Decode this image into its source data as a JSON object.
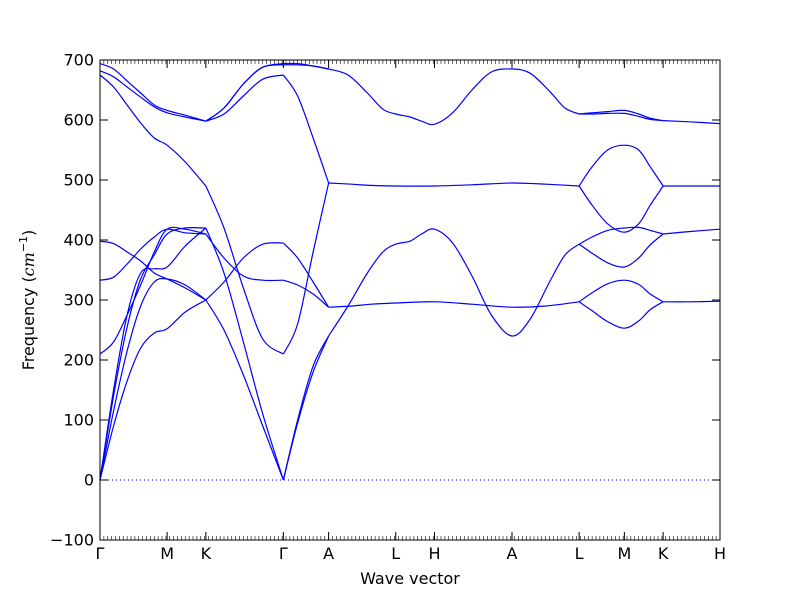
{
  "chart_data": {
    "type": "line",
    "title": "",
    "xlabel": "Wave vector",
    "ylabel_text": "Frequency (",
    "ylabel_unit": "cm",
    "ylabel_exp": "−1",
    "ylabel_close": ")",
    "ylim": [
      -100,
      700
    ],
    "xlim": [
      0,
      16
    ],
    "y_ticks": [
      -100,
      0,
      100,
      200,
      300,
      400,
      500,
      600,
      700
    ],
    "x_ticks": [
      {
        "label": "Γ",
        "x": 0
      },
      {
        "label": "M",
        "x": 1.732
      },
      {
        "label": "K",
        "x": 2.732
      },
      {
        "label": "Γ",
        "x": 4.732
      },
      {
        "label": "A",
        "x": 5.9
      },
      {
        "label": "L",
        "x": 7.632
      },
      {
        "label": "H",
        "x": 8.632
      },
      {
        "label": "A",
        "x": 10.632
      },
      {
        "label": "L",
        "x": 12.364
      },
      {
        "label": "M",
        "x": 13.532
      },
      {
        "label": "K",
        "x": 14.532
      },
      {
        "label": "H",
        "x": 16
      }
    ],
    "zero_line": {
      "y": 0,
      "style": "dotted",
      "color": "#0000ff"
    },
    "line_color": "#0000ff",
    "series": [
      {
        "x": [
          0,
          0.35,
          0.7,
          1.05,
          1.4,
          1.732,
          2.2,
          2.732
        ],
        "y": [
          0,
          90,
          165,
          220,
          245,
          252,
          280,
          300
        ]
      },
      {
        "x": [
          0,
          0.35,
          0.7,
          1.05,
          1.4,
          1.732,
          2.2,
          2.732
        ],
        "y": [
          0,
          115,
          215,
          290,
          330,
          335,
          325,
          300
        ]
      },
      {
        "x": [
          0,
          0.35,
          0.7,
          1.05,
          1.4,
          1.732,
          2.2,
          2.732
        ],
        "y": [
          0,
          140,
          255,
          335,
          375,
          410,
          420,
          420
        ]
      },
      {
        "x": [
          0,
          0.35,
          0.7,
          1.05,
          1.4,
          1.732,
          2.2,
          2.732
        ],
        "y": [
          0,
          150,
          275,
          345,
          352,
          355,
          390,
          420
        ]
      },
      {
        "x": [
          0,
          0.35,
          0.7,
          1.05,
          1.4,
          1.732,
          2.2,
          2.732
        ],
        "y": [
          210,
          230,
          275,
          325,
          380,
          418,
          418,
          410
        ]
      },
      {
        "x": [
          0,
          0.35,
          0.7,
          1.05,
          1.4,
          1.732,
          2.2,
          2.732
        ],
        "y": [
          333,
          338,
          360,
          385,
          405,
          418,
          412,
          410
        ]
      },
      {
        "x": [
          0,
          0.35,
          0.7,
          1.05,
          1.4,
          1.732,
          2.2,
          2.732
        ],
        "y": [
          398,
          394,
          380,
          365,
          345,
          335,
          320,
          300
        ]
      },
      {
        "x": [
          0,
          0.35,
          0.7,
          1.05,
          1.4,
          1.732,
          2.2,
          2.732
        ],
        "y": [
          675,
          655,
          625,
          595,
          570,
          558,
          530,
          490
        ]
      },
      {
        "x": [
          0,
          0.35,
          0.7,
          1.05,
          1.4,
          1.732,
          2.2,
          2.732
        ],
        "y": [
          682,
          672,
          655,
          638,
          622,
          612,
          605,
          598
        ]
      },
      {
        "x": [
          0,
          0.35,
          0.7,
          1.05,
          1.4,
          1.732,
          2.2,
          2.732
        ],
        "y": [
          694,
          685,
          665,
          645,
          625,
          616,
          608,
          598
        ]
      },
      {
        "x": [
          2.732,
          3.2,
          3.7,
          4.2,
          4.732
        ],
        "y": [
          300,
          250,
          175,
          90,
          0
        ]
      },
      {
        "x": [
          2.732,
          3.2,
          3.7,
          4.2,
          4.732
        ],
        "y": [
          420,
          345,
          230,
          110,
          0
        ]
      },
      {
        "x": [
          2.732,
          3.2,
          3.7,
          4.2,
          4.732
        ],
        "y": [
          410,
          370,
          340,
          333,
          333
        ]
      },
      {
        "x": [
          2.732,
          3.2,
          3.7,
          4.2,
          4.732
        ],
        "y": [
          300,
          330,
          370,
          393,
          395
        ]
      },
      {
        "x": [
          2.732,
          3.2,
          3.7,
          4.2,
          4.732
        ],
        "y": [
          490,
          420,
          320,
          235,
          210
        ]
      },
      {
        "x": [
          2.732,
          3.2,
          3.7,
          4.2,
          4.732
        ],
        "y": [
          598,
          610,
          640,
          668,
          675
        ]
      },
      {
        "x": [
          2.732,
          3.2,
          3.7,
          4.2,
          4.732
        ],
        "y": [
          598,
          620,
          660,
          688,
          692
        ]
      },
      {
        "x": [
          2.732,
          3.2,
          3.7,
          4.2,
          4.732
        ],
        "y": [
          598,
          620,
          660,
          688,
          694
        ]
      },
      {
        "x": [
          4.732,
          5.1,
          5.5,
          5.9
        ],
        "y": [
          0,
          95,
          180,
          240
        ]
      },
      {
        "x": [
          4.732,
          5.1,
          5.5,
          5.9
        ],
        "y": [
          0,
          100,
          190,
          240
        ]
      },
      {
        "x": [
          4.732,
          5.1,
          5.5,
          5.9
        ],
        "y": [
          333,
          325,
          310,
          288
        ]
      },
      {
        "x": [
          4.732,
          5.1,
          5.5,
          5.9
        ],
        "y": [
          395,
          370,
          330,
          288
        ]
      },
      {
        "x": [
          4.732,
          5.1,
          5.5,
          5.9
        ],
        "y": [
          210,
          260,
          380,
          495
        ]
      },
      {
        "x": [
          4.732,
          5.1,
          5.5,
          5.9
        ],
        "y": [
          675,
          640,
          570,
          495
        ]
      },
      {
        "x": [
          4.732,
          5.1,
          5.5,
          5.9
        ],
        "y": [
          692,
          692,
          690,
          685
        ]
      },
      {
        "x": [
          4.732,
          5.1,
          5.5,
          5.9
        ],
        "y": [
          694,
          694,
          690,
          685
        ]
      },
      {
        "x": [
          5.9,
          6.4,
          6.9,
          7.3,
          7.632,
          8.0,
          8.3,
          8.632,
          9.1,
          9.6,
          10.1,
          10.632,
          11.1,
          11.6,
          12.0,
          12.364
        ],
        "y": [
          240,
          290,
          345,
          380,
          393,
          398,
          410,
          418,
          395,
          340,
          275,
          240,
          268,
          330,
          375,
          393
        ]
      },
      {
        "x": [
          5.9,
          6.5,
          7.0,
          7.632,
          8.632,
          9.6,
          10.632,
          11.5,
          12.364
        ],
        "y": [
          288,
          290,
          293,
          295,
          297,
          293,
          288,
          290,
          297
        ]
      },
      {
        "x": [
          5.9,
          6.5,
          7.0,
          7.632,
          8.632,
          9.6,
          10.632,
          11.5,
          12.364
        ],
        "y": [
          495,
          493,
          491,
          490,
          490,
          492,
          495,
          493,
          490
        ]
      },
      {
        "x": [
          5.9,
          6.4,
          6.9,
          7.3,
          7.632,
          8.0,
          8.3,
          8.632,
          9.1,
          9.6,
          10.1,
          10.632,
          11.1,
          11.6,
          12.0,
          12.364
        ],
        "y": [
          685,
          675,
          645,
          618,
          610,
          605,
          598,
          593,
          612,
          650,
          680,
          685,
          678,
          648,
          620,
          610
        ]
      },
      {
        "x": [
          12.364,
          12.7,
          13.1,
          13.532,
          13.9,
          14.2,
          14.532
        ],
        "y": [
          297,
          282,
          264,
          253,
          265,
          284,
          297
        ]
      },
      {
        "x": [
          12.364,
          12.7,
          13.1,
          13.532,
          13.9,
          14.2,
          14.532
        ],
        "y": [
          297,
          312,
          327,
          333,
          326,
          310,
          297
        ]
      },
      {
        "x": [
          12.364,
          12.7,
          13.1,
          13.532,
          13.9,
          14.2,
          14.532
        ],
        "y": [
          393,
          378,
          362,
          355,
          370,
          392,
          410
        ]
      },
      {
        "x": [
          12.364,
          12.7,
          13.1,
          13.532,
          13.9,
          14.2,
          14.532
        ],
        "y": [
          393,
          405,
          416,
          420,
          421,
          416,
          410
        ]
      },
      {
        "x": [
          12.364,
          12.7,
          13.1,
          13.532,
          13.9,
          14.2,
          14.532
        ],
        "y": [
          490,
          458,
          427,
          413,
          427,
          458,
          490
        ]
      },
      {
        "x": [
          12.364,
          12.7,
          13.1,
          13.532,
          13.9,
          14.2,
          14.532
        ],
        "y": [
          490,
          522,
          550,
          558,
          550,
          522,
          490
        ]
      },
      {
        "x": [
          12.364,
          12.7,
          13.1,
          13.532,
          13.9,
          14.2,
          14.532
        ],
        "y": [
          610,
          610,
          611,
          611,
          606,
          601,
          599
        ]
      },
      {
        "x": [
          12.364,
          12.7,
          13.1,
          13.532,
          13.9,
          14.2,
          14.532
        ],
        "y": [
          610,
          612,
          614,
          616,
          610,
          603,
          599
        ]
      },
      {
        "x": [
          14.532,
          15.2,
          16
        ],
        "y": [
          297,
          297,
          298
        ]
      },
      {
        "x": [
          14.532,
          15.2,
          16
        ],
        "y": [
          410,
          414,
          418
        ]
      },
      {
        "x": [
          14.532,
          15.2,
          16
        ],
        "y": [
          490,
          490,
          490
        ]
      },
      {
        "x": [
          14.532,
          15.2,
          16
        ],
        "y": [
          599,
          597,
          594
        ]
      }
    ]
  }
}
